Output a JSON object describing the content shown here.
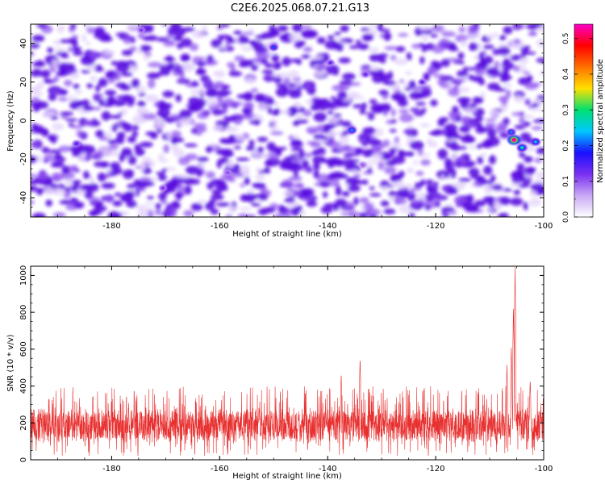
{
  "title": "C2E6.2025.068.07.21.G13",
  "colors": {
    "noise_bright": "#5a10e0",
    "noise_faint": "#e6d6fb",
    "snr_line": "#e83030",
    "colorscale": [
      "#ffffff",
      "#c9a8f5",
      "#7a2ff0",
      "#1a10ff",
      "#00c8ff",
      "#00e070",
      "#ffe000",
      "#ff7000",
      "#ff0000",
      "#ff00c8"
    ]
  },
  "chart_data": [
    {
      "type": "heatmap",
      "xlabel": "Height of straight line (km)",
      "ylabel": "Frequency (Hz)",
      "xlim": [
        -195,
        -100
      ],
      "ylim": [
        -50,
        50
      ],
      "xticks": [
        -180,
        -160,
        -140,
        -120,
        -100
      ],
      "yticks": [
        -40,
        -20,
        0,
        20,
        40
      ],
      "colorbar": {
        "label": "Normalized spectral amplitude",
        "range": [
          0,
          0.54
        ],
        "ticks": [
          0,
          0.1,
          0.2,
          0.3,
          0.4,
          0.5
        ],
        "tick_labels": [
          "0.0",
          "0.1",
          "0.2",
          "0.3",
          "0.4",
          "0.5"
        ]
      },
      "typical_amplitude": 0.05,
      "hotspots": [
        {
          "x": -105.5,
          "y": -10,
          "amplitude": 0.53
        },
        {
          "x": -104,
          "y": -14,
          "amplitude": 0.28
        },
        {
          "x": -106,
          "y": -6,
          "amplitude": 0.22
        },
        {
          "x": -101.5,
          "y": -11,
          "amplitude": 0.25
        },
        {
          "x": -135.5,
          "y": -5,
          "amplitude": 0.22
        },
        {
          "x": -150,
          "y": 38,
          "amplitude": 0.2
        },
        {
          "x": -139.5,
          "y": 30,
          "amplitude": 0.14
        },
        {
          "x": -133,
          "y": 24,
          "amplitude": 0.14
        },
        {
          "x": -122.5,
          "y": 20,
          "amplitude": 0.14
        },
        {
          "x": -186.5,
          "y": -12,
          "amplitude": 0.15
        },
        {
          "x": -170.5,
          "y": -35,
          "amplitude": 0.12
        },
        {
          "x": -174.5,
          "y": 47,
          "amplitude": 0.12
        },
        {
          "x": -158.5,
          "y": -27,
          "amplitude": 0.11
        },
        {
          "x": -133.5,
          "y": -23,
          "amplitude": 0.1
        }
      ]
    },
    {
      "type": "line",
      "xlabel": "Height of straight line (km)",
      "ylabel": "SNR (10 * v/v)",
      "xlim": [
        -195,
        -100
      ],
      "ylim": [
        0,
        1050
      ],
      "xticks": [
        -180,
        -160,
        -140,
        -120,
        -100
      ],
      "yticks": [
        0,
        200,
        400,
        600,
        800,
        1000
      ],
      "baseline": {
        "typical_low": 80,
        "typical_high": 290,
        "peak_spread": 110
      },
      "peaks": [
        {
          "x": -105.3,
          "y": 1050
        },
        {
          "x": -105.6,
          "y": 840
        },
        {
          "x": -106.0,
          "y": 620
        },
        {
          "x": -134.0,
          "y": 560
        },
        {
          "x": -137.5,
          "y": 470
        },
        {
          "x": -106.8,
          "y": 520
        },
        {
          "x": -102.5,
          "y": 440
        }
      ]
    }
  ]
}
